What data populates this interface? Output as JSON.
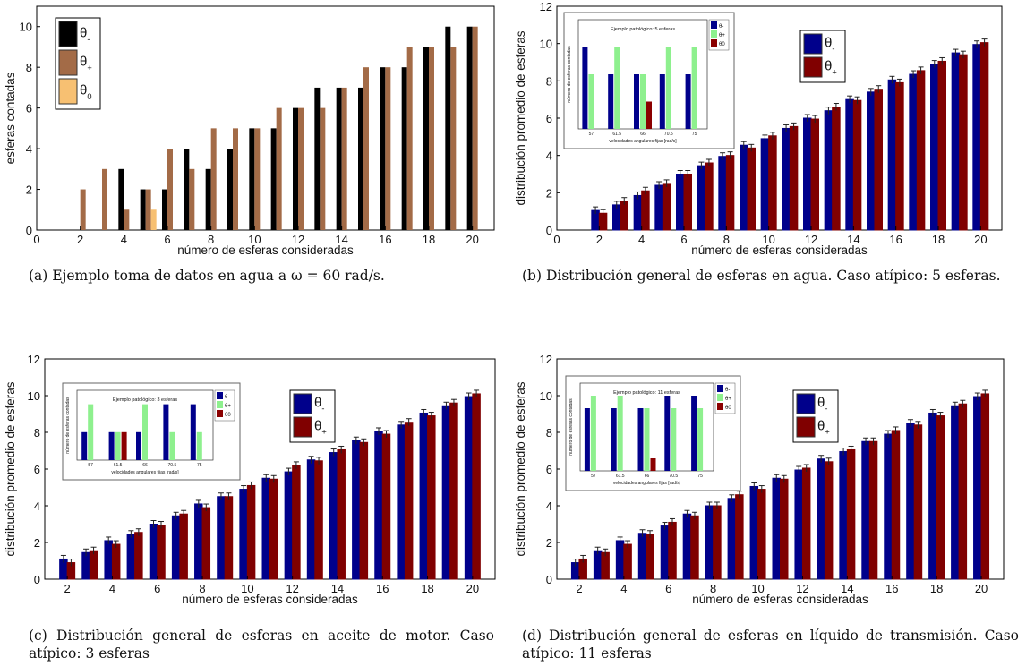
{
  "captions": {
    "a": "(a) Ejemplo toma de datos en agua a ω = 60 rad/s.",
    "b": "(b) Distribución general de esferas en agua. Caso atípico: 5 esferas.",
    "c": "(c) Distribución general de esferas en aceite de motor. Caso atípico: 3 esferas",
    "d": "(d) Distribución general de esferas en líquido de transmisión. Caso atípico: 11 esferas"
  },
  "colors": {
    "theta_minus_a": "#000000",
    "theta_plus_a": "#a36b47",
    "theta_zero_a": "#f7c072",
    "theta_minus": "#00008b",
    "theta_plus": "#800000",
    "inset_blue": "#00008b",
    "inset_green": "#8ef08e",
    "inset_red": "#8b0000"
  },
  "chart_data": [
    {
      "id": "a",
      "type": "bar",
      "xlabel": "número de esferas consideradas",
      "ylabel": "esferas contadas",
      "xlim": [
        0,
        21
      ],
      "ylim": [
        0,
        11
      ],
      "xticks": [
        0,
        2,
        4,
        6,
        8,
        10,
        12,
        14,
        16,
        18,
        20
      ],
      "yticks": [
        0,
        2,
        4,
        6,
        8,
        10
      ],
      "legend": [
        "θ-",
        "θ+",
        "θ0"
      ],
      "legend_position": "top-left",
      "x": [
        2,
        3,
        4,
        5,
        6,
        7,
        8,
        9,
        10,
        11,
        12,
        13,
        14,
        15,
        16,
        17,
        18,
        19,
        20
      ],
      "series": [
        {
          "name": "θ-",
          "values": [
            0,
            0,
            3,
            2,
            2,
            4,
            3,
            4,
            5,
            5,
            6,
            7,
            7,
            7,
            8,
            8,
            9,
            10,
            10
          ]
        },
        {
          "name": "θ+",
          "values": [
            2,
            3,
            1,
            2,
            4,
            3,
            5,
            5,
            5,
            6,
            6,
            6,
            7,
            8,
            8,
            9,
            9,
            9,
            10
          ]
        },
        {
          "name": "θ0",
          "values": [
            0,
            0,
            0,
            1,
            0,
            0,
            0,
            0,
            0,
            0,
            0,
            0,
            0,
            0,
            0,
            0,
            0,
            0,
            0
          ]
        }
      ]
    },
    {
      "id": "b",
      "type": "bar",
      "xlabel": "número de esferas consideradas",
      "ylabel": "distribución promedio de esferas",
      "xlim": [
        0,
        21
      ],
      "ylim": [
        0,
        12
      ],
      "xticks": [
        0,
        2,
        4,
        6,
        8,
        10,
        12,
        14,
        16,
        18,
        20
      ],
      "yticks": [
        0,
        2,
        4,
        6,
        8,
        10,
        12
      ],
      "legend": [
        "θ-",
        "θ+"
      ],
      "legend_position": "top-right",
      "x": [
        2,
        3,
        4,
        5,
        6,
        7,
        8,
        9,
        10,
        11,
        12,
        13,
        14,
        15,
        16,
        17,
        18,
        19,
        20
      ],
      "series": [
        {
          "name": "θ-",
          "values": [
            1.05,
            1.35,
            1.85,
            2.4,
            3.0,
            3.45,
            3.95,
            4.55,
            4.9,
            5.45,
            6.0,
            6.4,
            7.0,
            7.4,
            8.05,
            8.35,
            8.9,
            9.5,
            9.95
          ]
        },
        {
          "name": "θ+",
          "values": [
            0.9,
            1.55,
            2.1,
            2.5,
            3.0,
            3.6,
            4.0,
            4.4,
            5.05,
            5.55,
            5.95,
            6.6,
            6.95,
            7.55,
            7.9,
            8.55,
            9.05,
            9.4,
            10.05
          ]
        }
      ],
      "inset": {
        "title": "Ejemplo patológico: 5 esferas",
        "xlabel": "velocidades angulares fijas [rad/s]",
        "ylabel": "número de esferas contadas",
        "categories": [
          "57",
          "61.5",
          "66",
          "70.5",
          "75"
        ],
        "ylim": [
          0,
          4
        ],
        "series": [
          {
            "name": "θ-",
            "values": [
              3,
              2,
              2,
              2,
              2
            ]
          },
          {
            "name": "θ+",
            "values": [
              2,
              3,
              2,
              3,
              3
            ]
          },
          {
            "name": "θ0",
            "values": [
              0,
              0,
              1,
              0,
              0
            ]
          }
        ]
      }
    },
    {
      "id": "c",
      "type": "bar",
      "xlabel": "número de esferas consideradas",
      "ylabel": "distribución promedio de esferas",
      "xlim": [
        1,
        21
      ],
      "ylim": [
        0,
        12
      ],
      "xticks": [
        2,
        4,
        6,
        8,
        10,
        12,
        14,
        16,
        18,
        20
      ],
      "yticks": [
        0,
        2,
        4,
        6,
        8,
        10,
        12
      ],
      "legend": [
        "θ-",
        "θ+"
      ],
      "legend_position": "top-right",
      "x": [
        2,
        3,
        4,
        5,
        6,
        7,
        8,
        9,
        10,
        11,
        12,
        13,
        14,
        15,
        16,
        17,
        18,
        19,
        20
      ],
      "series": [
        {
          "name": "θ-",
          "values": [
            1.1,
            1.45,
            2.1,
            2.45,
            3.0,
            3.45,
            4.1,
            4.5,
            4.9,
            5.5,
            5.85,
            6.5,
            6.9,
            7.55,
            8.05,
            8.4,
            9.05,
            9.45,
            9.95
          ]
        },
        {
          "name": "θ+",
          "values": [
            0.9,
            1.55,
            1.9,
            2.55,
            2.95,
            3.55,
            3.9,
            4.5,
            5.1,
            5.45,
            6.2,
            6.45,
            7.05,
            7.45,
            7.9,
            8.55,
            8.9,
            9.6,
            10.1
          ]
        }
      ],
      "inset": {
        "title": "Ejemplo patológico: 3 esferas",
        "xlabel": "velocidades angulares fijas [rad/s]",
        "ylabel": "número de esferas contadas",
        "categories": [
          "57",
          "61.5",
          "66",
          "70.5",
          "75"
        ],
        "ylim": [
          0,
          2.5
        ],
        "series": [
          {
            "name": "θ-",
            "values": [
              1,
              1,
              1,
              2,
              2
            ]
          },
          {
            "name": "θ+",
            "values": [
              2,
              1,
              2,
              1,
              1
            ]
          },
          {
            "name": "θ0",
            "values": [
              0,
              1,
              0,
              0,
              0
            ]
          }
        ]
      }
    },
    {
      "id": "d",
      "type": "bar",
      "xlabel": "número de esferas consideradas",
      "ylabel": "distribución promedio de esferas",
      "xlim": [
        1,
        21
      ],
      "ylim": [
        0,
        12
      ],
      "xticks": [
        2,
        4,
        6,
        8,
        10,
        12,
        14,
        16,
        18,
        20
      ],
      "yticks": [
        0,
        2,
        4,
        6,
        8,
        10,
        12
      ],
      "legend": [
        "θ-",
        "θ+"
      ],
      "legend_position": "top-right",
      "x": [
        2,
        3,
        4,
        5,
        6,
        7,
        8,
        9,
        10,
        11,
        12,
        13,
        14,
        15,
        16,
        17,
        18,
        19,
        20
      ],
      "series": [
        {
          "name": "θ-",
          "values": [
            0.9,
            1.55,
            2.1,
            2.5,
            2.9,
            3.55,
            4.0,
            4.4,
            5.05,
            5.5,
            5.95,
            6.55,
            6.95,
            7.5,
            7.9,
            8.5,
            9.05,
            9.45,
            9.95
          ]
        },
        {
          "name": "θ+",
          "values": [
            1.1,
            1.45,
            1.9,
            2.45,
            3.1,
            3.45,
            4.0,
            4.6,
            4.9,
            5.45,
            6.05,
            6.4,
            7.05,
            7.5,
            8.1,
            8.4,
            8.9,
            9.55,
            10.1
          ]
        }
      ],
      "inset": {
        "title": "Ejemplo patológico: 11 esferas",
        "xlabel": "velocidades angulares fijas [rad/s]",
        "ylabel": "número de esferas contadas",
        "categories": [
          "57",
          "61.5",
          "66",
          "70.5",
          "75"
        ],
        "ylim": [
          0,
          7
        ],
        "series": [
          {
            "name": "θ-",
            "values": [
              5,
              5,
              5,
              6,
              6
            ]
          },
          {
            "name": "θ+",
            "values": [
              6,
              6,
              5,
              5,
              5
            ]
          },
          {
            "name": "θ0",
            "values": [
              0,
              0,
              1,
              0,
              0
            ]
          }
        ]
      }
    }
  ]
}
